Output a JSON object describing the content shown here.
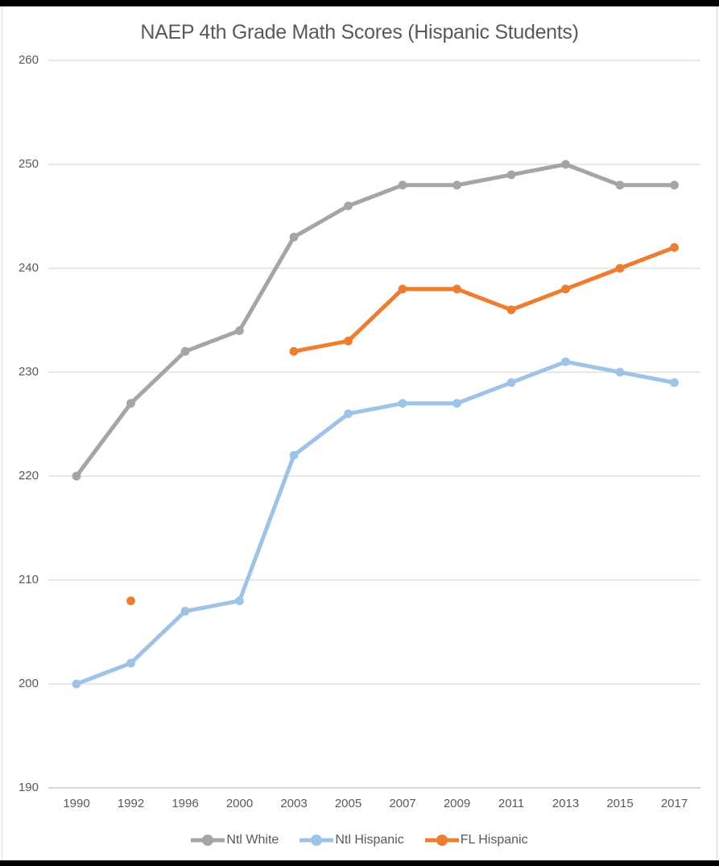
{
  "page": {
    "top_bar_color": "#000000",
    "bottom_bar_color": "#000000",
    "background": "#ffffff"
  },
  "chart_data": {
    "type": "line",
    "title": "NAEP 4th Grade Math Scores (Hispanic Students)",
    "xlabel": "",
    "ylabel": "",
    "x_categories": [
      "1990",
      "1992",
      "1996",
      "2000",
      "2003",
      "2005",
      "2007",
      "2009",
      "2011",
      "2013",
      "2015",
      "2017"
    ],
    "y_ticks": [
      190,
      200,
      210,
      220,
      230,
      240,
      250,
      260
    ],
    "ylim": [
      190,
      260
    ],
    "grid": true,
    "legend_position": "bottom",
    "colors": {
      "grid": "#d9d9d9",
      "axis": "#bfbfbf",
      "text": "#595959"
    },
    "series": [
      {
        "name": "Ntl White",
        "color": "#a5a5a5",
        "values": [
          220,
          227,
          232,
          234,
          243,
          246,
          248,
          248,
          249,
          250,
          248,
          248
        ]
      },
      {
        "name": "Ntl Hispanic",
        "color": "#9dc3e6",
        "values": [
          200,
          202,
          207,
          208,
          222,
          226,
          227,
          227,
          229,
          231,
          230,
          229
        ]
      },
      {
        "name": "FL Hispanic",
        "color": "#ed7d31",
        "values": [
          null,
          208,
          null,
          null,
          232,
          233,
          238,
          238,
          236,
          238,
          240,
          242
        ]
      }
    ]
  }
}
